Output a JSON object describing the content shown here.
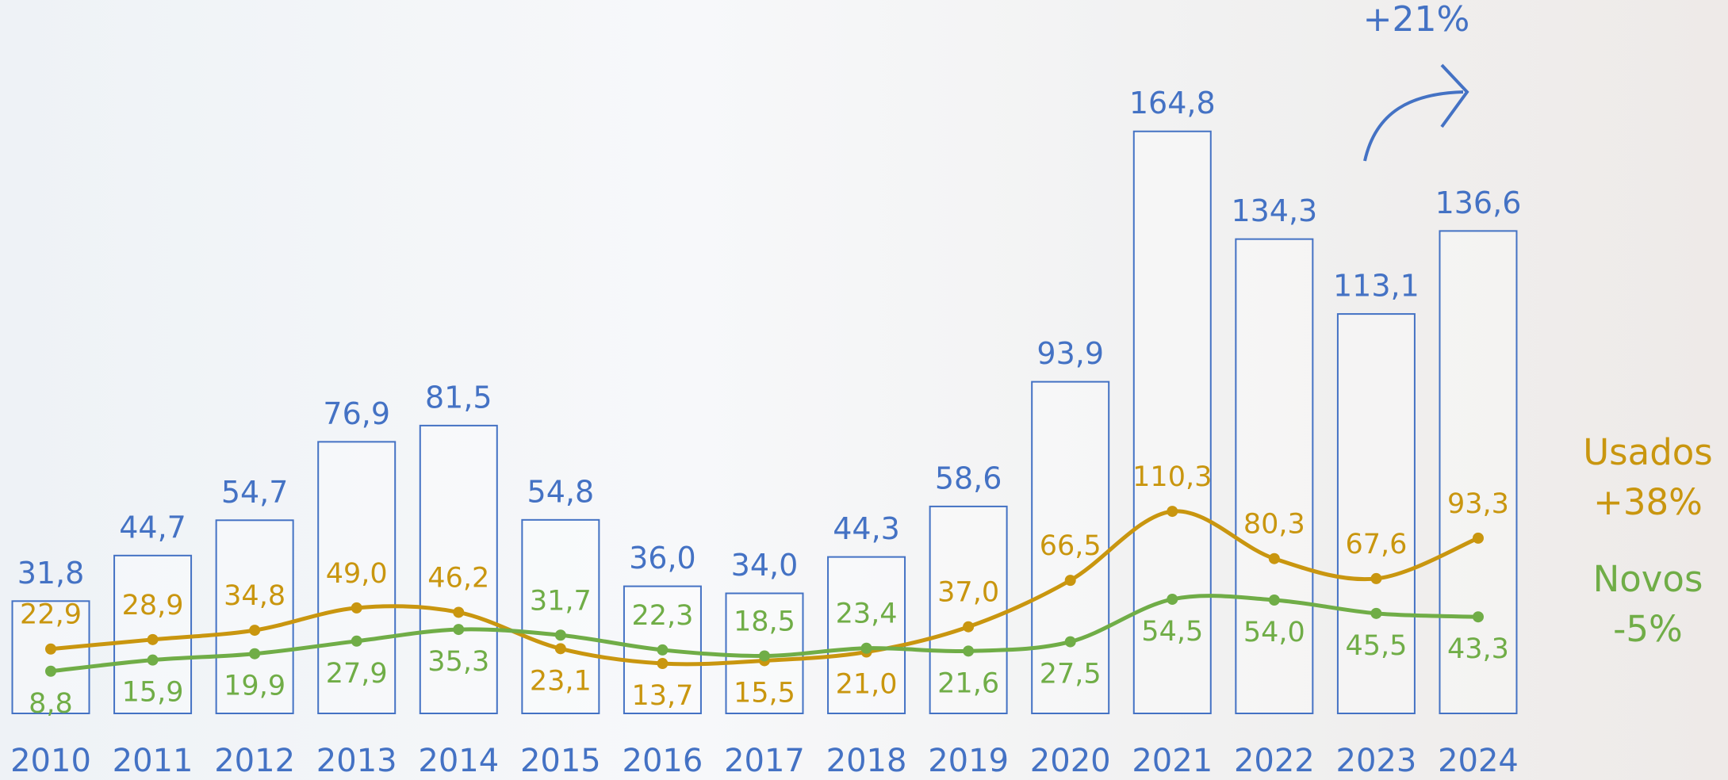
{
  "chart_data": {
    "type": "bar",
    "growth_label": "+21%",
    "categories": [
      "2010",
      "2011",
      "2012",
      "2013",
      "2014",
      "2015",
      "2016",
      "2017",
      "2018",
      "2019",
      "2020",
      "2021",
      "2022",
      "2023",
      "2024"
    ],
    "ylim": [
      0,
      202
    ],
    "y2lim": [
      -18,
      435
    ],
    "series": [
      {
        "type": "bar",
        "color": "#4472c4",
        "values": [
          31.8,
          44.7,
          54.7,
          76.9,
          81.5,
          54.8,
          36.0,
          34.0,
          44.3,
          58.6,
          93.9,
          164.8,
          134.3,
          113.1,
          136.6
        ],
        "value_labels": [
          "31,8",
          "44,7",
          "54,7",
          "76,9",
          "81,5",
          "54,8",
          "36,0",
          "34,0",
          "44,3",
          "58,6",
          "93,9",
          "164,8",
          "134,3",
          "113,1",
          "136,6"
        ]
      },
      {
        "type": "line",
        "axis": "y2",
        "name": "Usados",
        "change": "+38%",
        "color": "#c9960f",
        "values": [
          22.9,
          28.9,
          34.8,
          49.0,
          46.2,
          23.1,
          13.7,
          15.5,
          21.0,
          37.0,
          66.5,
          110.3,
          80.3,
          67.6,
          93.3
        ],
        "value_labels": [
          "22,9",
          "28,9",
          "34,8",
          "49,0",
          "46,2",
          "23,1",
          "13,7",
          "15,5",
          "21,0",
          "37,0",
          "66,5",
          "110,3",
          "80,3",
          "67,6",
          "93,3"
        ]
      },
      {
        "type": "line",
        "axis": "y2",
        "name": "Novos",
        "change": "-5%",
        "color": "#70ad47",
        "values": [
          8.8,
          15.9,
          19.9,
          27.9,
          35.3,
          31.7,
          22.3,
          18.5,
          23.4,
          21.6,
          27.5,
          54.5,
          54.0,
          45.5,
          43.3
        ],
        "value_labels": [
          "8,8",
          "15,9",
          "19,9",
          "27,9",
          "35,3",
          "31,7",
          "22,3",
          "18,5",
          "23,4",
          "21,6",
          "27,5",
          "54,5",
          "54,0",
          "45,5",
          "43,3"
        ]
      }
    ]
  }
}
